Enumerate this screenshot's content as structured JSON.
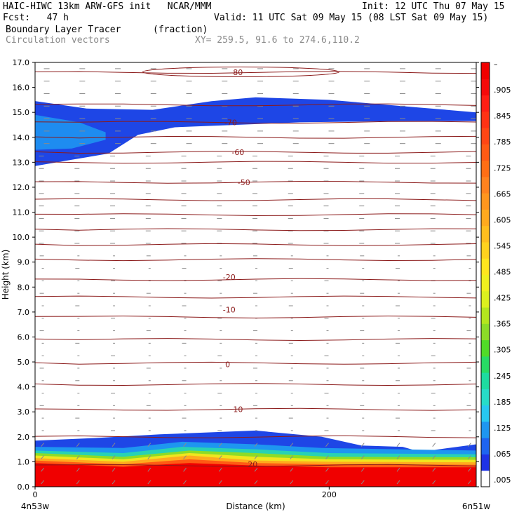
{
  "header": {
    "title_left": "HAIC-HIWC 13km ARW-GFS init   NCAR/MMM",
    "init": "Init: 12 UTC Thu 07 May 15",
    "fcst": "Fcst:   47 h",
    "valid": "Valid: 11 UTC Sat 09 May 15 (08 LST Sat 09 May 15)",
    "field_name": "Boundary Layer Tracer",
    "field_units": "(fraction)",
    "vector_name": "Circulation vectors",
    "xsec_coords": "XY= 259.5, 91.6 to 274.6,110.2"
  },
  "chart_data": {
    "type": "heatmap",
    "xlabel": "Distance (km)",
    "ylabel": "Height (km)",
    "xlim": [
      0,
      300
    ],
    "ylim": [
      0,
      17
    ],
    "x_ticks": [
      0,
      200
    ],
    "x_end_labels": [
      "4n53w",
      "6n51w"
    ],
    "y_ticks": [
      "0.0",
      "1.0",
      "2.0",
      "3.0",
      "4.0",
      "5.0",
      "6.0",
      "7.0",
      "8.0",
      "9.0",
      "10.0",
      "11.0",
      "12.0",
      "13.0",
      "14.0",
      "15.0",
      "16.0",
      "17.0"
    ],
    "colorbar": {
      "labels": [
        ".005",
        ".065",
        ".125",
        ".185",
        ".245",
        ".305",
        ".365",
        ".425",
        ".485",
        ".545",
        ".605",
        ".665",
        ".725",
        ".785",
        ".845",
        ".905",
        "–"
      ],
      "colors": [
        "#ffffff",
        "#1e32e6",
        "#1e78f0",
        "#28b4f0",
        "#28dcc8",
        "#1edc8c",
        "#3cdc3c",
        "#8cdc28",
        "#c8e61e",
        "#f0f01e",
        "#ffd21e",
        "#ffaa1e",
        "#ff821e",
        "#ff5a14",
        "#ff3214",
        "#ff1414",
        "#f00000"
      ]
    },
    "temperature_contours": [
      {
        "label": "-80",
        "x": 137,
        "y": 16.6
      },
      {
        "label": "-70",
        "x": 133,
        "y": 14.6
      },
      {
        "label": "-60",
        "x": 138,
        "y": 13.4
      },
      {
        "label": "-50",
        "x": 142,
        "y": 12.2
      },
      {
        "label": "-20",
        "x": 132,
        "y": 8.4
      },
      {
        "label": "-10",
        "x": 132,
        "y": 7.1
      },
      {
        "label": "0",
        "x": 131,
        "y": 4.9
      },
      {
        "label": "10",
        "x": 138,
        "y": 3.1
      },
      {
        "label": "20",
        "x": 148,
        "y": 0.9
      }
    ],
    "contour_levels_km": [
      0.85,
      2.0,
      3.1,
      4.1,
      4.95,
      5.9,
      6.8,
      7.6,
      8.3,
      9.1,
      9.7,
      10.3,
      10.9,
      11.5,
      12.2,
      13.0,
      13.4,
      14.0,
      14.6,
      15.3,
      16.6
    ]
  }
}
